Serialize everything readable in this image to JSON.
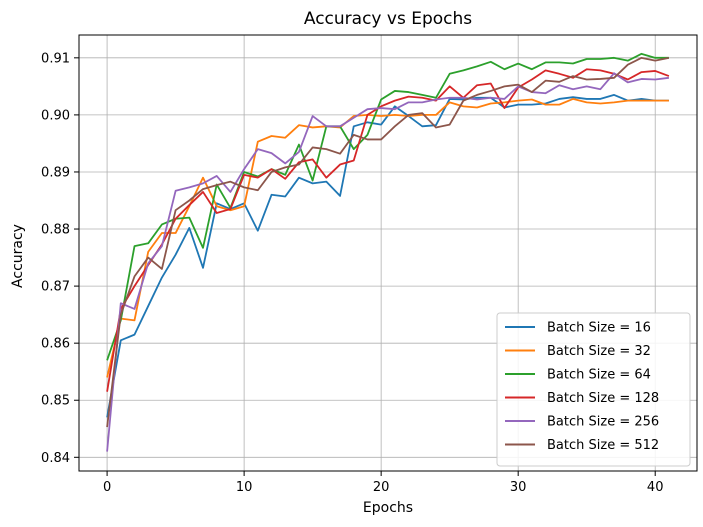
{
  "chart_data": {
    "type": "line",
    "title": "Accuracy vs Epochs",
    "xlabel": "Epochs",
    "ylabel": "Accuracy",
    "xlim": [
      -2.05,
      43.05
    ],
    "ylim": [
      0.8376,
      0.914
    ],
    "xticks": [
      0,
      10,
      20,
      30,
      40
    ],
    "yticks": [
      0.84,
      0.85,
      0.86,
      0.87,
      0.88,
      0.89,
      0.9,
      0.91
    ],
    "ytick_labels": [
      "0.84",
      "0.85",
      "0.86",
      "0.87",
      "0.88",
      "0.89",
      "0.90",
      "0.91"
    ],
    "grid": true,
    "legend_position": "lower-right",
    "x": [
      0,
      1,
      2,
      3,
      4,
      5,
      6,
      7,
      8,
      9,
      10,
      11,
      12,
      13,
      14,
      15,
      16,
      17,
      18,
      19,
      20,
      21,
      22,
      23,
      24,
      25,
      26,
      27,
      28,
      29,
      30,
      31,
      32,
      33,
      34,
      35,
      36,
      37,
      38,
      39,
      40,
      41
    ],
    "series": [
      {
        "name": "Batch Size = 16",
        "color": "#1f77b4",
        "values": [
          0.847,
          0.8605,
          0.8615,
          0.8665,
          0.8715,
          0.8755,
          0.8802,
          0.8732,
          0.8845,
          0.8835,
          0.8845,
          0.8797,
          0.886,
          0.8857,
          0.889,
          0.888,
          0.8883,
          0.8858,
          0.898,
          0.8987,
          0.8983,
          0.9015,
          0.8998,
          0.898,
          0.8982,
          0.9028,
          0.9027,
          0.903,
          0.903,
          0.9013,
          0.9018,
          0.9018,
          0.902,
          0.9028,
          0.9031,
          0.9028,
          0.9028,
          0.9035,
          0.9025,
          0.9028,
          0.9025,
          0.9025
        ]
      },
      {
        "name": "Batch Size = 32",
        "color": "#ff7f0e",
        "values": [
          0.854,
          0.8643,
          0.864,
          0.876,
          0.8793,
          0.8793,
          0.884,
          0.889,
          0.884,
          0.8833,
          0.884,
          0.8953,
          0.8963,
          0.896,
          0.8982,
          0.8978,
          0.898,
          0.8978,
          0.8998,
          0.9,
          0.8998,
          0.9,
          0.8998,
          0.9,
          0.9,
          0.9022,
          0.9015,
          0.9013,
          0.902,
          0.9022,
          0.9025,
          0.9027,
          0.9018,
          0.9018,
          0.9028,
          0.9022,
          0.902,
          0.9022,
          0.9025,
          0.9025,
          0.9025,
          0.9025
        ]
      },
      {
        "name": "Batch Size = 64",
        "color": "#2ca02c",
        "values": [
          0.857,
          0.864,
          0.877,
          0.8775,
          0.8808,
          0.8818,
          0.882,
          0.8767,
          0.8878,
          0.8837,
          0.89,
          0.8892,
          0.8905,
          0.8895,
          0.8948,
          0.8885,
          0.898,
          0.898,
          0.894,
          0.8965,
          0.9027,
          0.9042,
          0.904,
          0.9035,
          0.903,
          0.9072,
          0.9078,
          0.9085,
          0.9093,
          0.908,
          0.909,
          0.908,
          0.9092,
          0.9092,
          0.909,
          0.9098,
          0.9098,
          0.91,
          0.9095,
          0.9107,
          0.91,
          0.91
        ]
      },
      {
        "name": "Batch Size = 128",
        "color": "#d62728",
        "values": [
          0.8515,
          0.866,
          0.87,
          0.8737,
          0.8773,
          0.8818,
          0.8842,
          0.8865,
          0.8828,
          0.8835,
          0.8895,
          0.889,
          0.8905,
          0.8888,
          0.8917,
          0.8922,
          0.889,
          0.8913,
          0.892,
          0.9,
          0.9015,
          0.9025,
          0.9032,
          0.903,
          0.9025,
          0.905,
          0.903,
          0.9052,
          0.9055,
          0.9012,
          0.9048,
          0.9062,
          0.9078,
          0.9072,
          0.9065,
          0.908,
          0.9078,
          0.9072,
          0.9062,
          0.9075,
          0.9077,
          0.9068
        ]
      },
      {
        "name": "Batch Size = 256",
        "color": "#9467bd",
        "values": [
          0.841,
          0.867,
          0.866,
          0.874,
          0.877,
          0.8867,
          0.8873,
          0.888,
          0.8893,
          0.8865,
          0.8905,
          0.894,
          0.8933,
          0.8915,
          0.8935,
          0.8998,
          0.898,
          0.898,
          0.8995,
          0.901,
          0.9012,
          0.901,
          0.9022,
          0.9022,
          0.9027,
          0.903,
          0.903,
          0.9027,
          0.903,
          0.9028,
          0.905,
          0.904,
          0.9038,
          0.9052,
          0.9045,
          0.905,
          0.9045,
          0.9073,
          0.9057,
          0.9063,
          0.9062,
          0.9065
        ]
      },
      {
        "name": "Batch Size = 512",
        "color": "#8c564b",
        "values": [
          0.8453,
          0.865,
          0.8717,
          0.875,
          0.873,
          0.8833,
          0.885,
          0.887,
          0.8877,
          0.8883,
          0.8873,
          0.8868,
          0.89,
          0.8908,
          0.8913,
          0.8943,
          0.894,
          0.8932,
          0.8965,
          0.8957,
          0.8957,
          0.898,
          0.9,
          0.9003,
          0.8978,
          0.8983,
          0.9025,
          0.9035,
          0.9042,
          0.905,
          0.9053,
          0.904,
          0.906,
          0.9058,
          0.9068,
          0.9062,
          0.9063,
          0.9065,
          0.9088,
          0.91,
          0.9095,
          0.91
        ]
      }
    ]
  }
}
